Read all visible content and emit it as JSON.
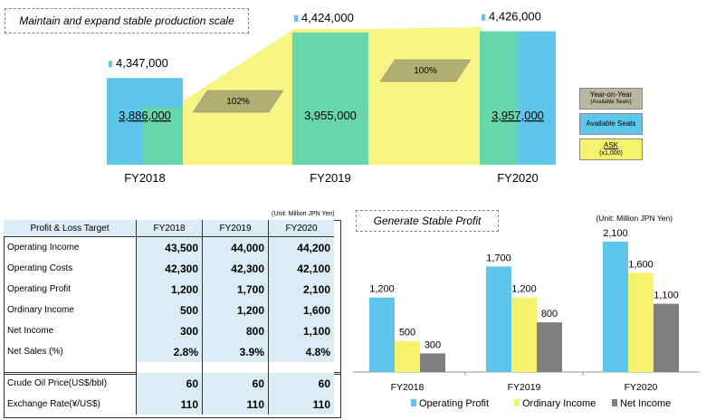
{
  "colors": {
    "blue": "#5ec6eb",
    "green": "#67d8a6",
    "yellow": "#f5f36e",
    "olive": "#b0ae70",
    "gray": "#7f7f7f",
    "cellbg": "#dcecf5"
  },
  "top": {
    "title": "Maintain and expand stable production scale",
    "legend": {
      "yoy_line1": "Year-on-Year",
      "yoy_line2": "(Available Seats)",
      "seats": "Available Seats",
      "ask_line1": "ASK",
      "ask_line2": "(x1,000)"
    }
  },
  "table": {
    "unit": "(Unit: Million JPN Yen)",
    "header": [
      "Profit & Loss Target",
      "FY2018",
      "FY2019",
      "FY2020"
    ],
    "rows": [
      {
        "label": "Operating Income",
        "values": [
          "43,500",
          "44,000",
          "44,200"
        ]
      },
      {
        "label": "Operating Costs",
        "values": [
          "42,300",
          "42,300",
          "42,100"
        ]
      },
      {
        "label": "Operating Profit",
        "values": [
          "1,200",
          "1,700",
          "2,100"
        ]
      },
      {
        "label": "Ordinary Income",
        "values": [
          "500",
          "1,200",
          "1,600"
        ]
      },
      {
        "label": "Net Income",
        "values": [
          "300",
          "800",
          "1,100"
        ]
      },
      {
        "label": "Net Sales (%)",
        "values": [
          "2.8%",
          "3.9%",
          "4.8%"
        ]
      }
    ],
    "rows2": [
      {
        "label": "Crude Oil Price(US$/bbl)",
        "values": [
          "60",
          "60",
          "60"
        ]
      },
      {
        "label": "Exchange Rate(¥/US$)",
        "values": [
          "110",
          "110",
          "110"
        ]
      }
    ]
  },
  "profit_title": "Generate Stable Profit",
  "chart_data": [
    {
      "type": "bar",
      "categories": [
        "FY2018",
        "FY2019",
        "FY2020"
      ],
      "series": [
        {
          "name": "Available Seats",
          "values": [
            4347000,
            4424000,
            4426000
          ],
          "labels": [
            "4,347,000",
            "4,424,000",
            "4,426,000"
          ]
        },
        {
          "name": "ASK",
          "values": [
            3886000,
            3955000,
            3957000
          ],
          "labels": [
            "3,886,000",
            "3,955,000",
            "3,957,000"
          ]
        }
      ],
      "yoy": [
        "102%",
        "100%"
      ]
    },
    {
      "type": "bar",
      "title": "Generate Stable Profit",
      "unit": "(Unit: Million JPN Yen)",
      "categories": [
        "FY2018",
        "FY2019",
        "FY2020"
      ],
      "ylim": [
        0,
        2400
      ],
      "series": [
        {
          "name": "Operating Profit",
          "values": [
            1200,
            1700,
            2100
          ],
          "labels": [
            "1,200",
            "1,700",
            "2,100"
          ]
        },
        {
          "name": "Ordinary Income",
          "values": [
            500,
            1200,
            1600
          ],
          "labels": [
            "500",
            "1,200",
            "1,600"
          ]
        },
        {
          "name": "Net Income",
          "values": [
            300,
            800,
            1100
          ],
          "labels": [
            "300",
            "800",
            "1,100"
          ]
        }
      ]
    }
  ]
}
